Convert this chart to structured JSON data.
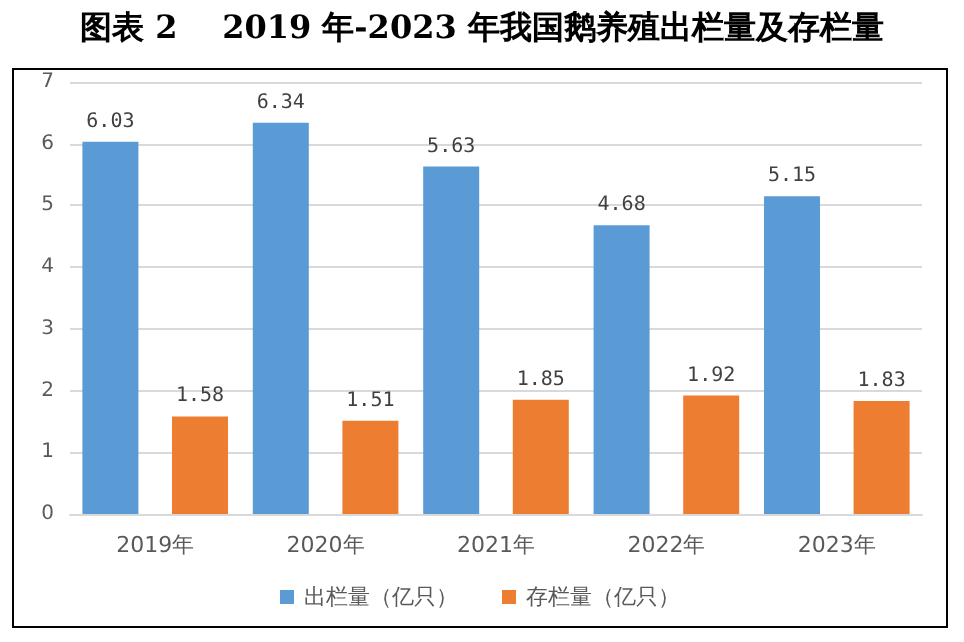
{
  "chart_data": {
    "type": "bar",
    "title": "图表 2    2019 年-2023 年我国鹅养殖出栏量及存栏量",
    "categories": [
      "2019年",
      "2020年",
      "2021年",
      "2022年",
      "2023年"
    ],
    "series": [
      {
        "name": "出栏量（亿只）",
        "color": "#5b9bd5",
        "values": [
          6.03,
          6.34,
          5.63,
          4.68,
          5.15
        ]
      },
      {
        "name": "存栏量（亿只）",
        "color": "#ed7d31",
        "values": [
          1.58,
          1.51,
          1.85,
          1.92,
          1.83
        ]
      }
    ],
    "ylim": [
      0,
      7
    ],
    "yticks": [
      0,
      1,
      2,
      3,
      4,
      5,
      6,
      7
    ],
    "grid": "y",
    "legend": "bottom",
    "data_labels": true
  }
}
